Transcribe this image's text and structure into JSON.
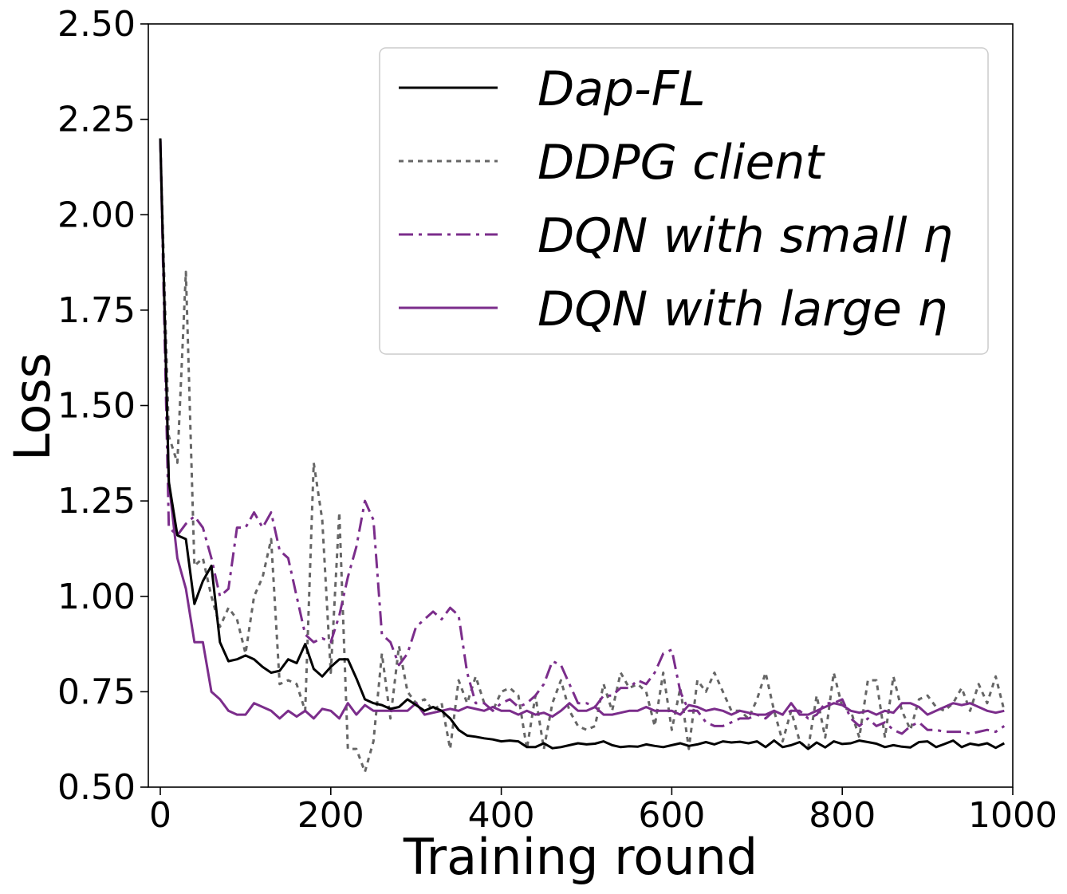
{
  "chart_data": {
    "type": "line",
    "title": "",
    "xlabel": "Training round",
    "ylabel": "Loss",
    "xlim": [
      0,
      1000
    ],
    "ylim": [
      0.5,
      2.5
    ],
    "xticks": [
      0,
      200,
      400,
      600,
      800,
      1000
    ],
    "xtick_labels": [
      "0",
      "200",
      "400",
      "600",
      "800",
      "1000"
    ],
    "yticks": [
      0.5,
      0.75,
      1.0,
      1.25,
      1.5,
      1.75,
      2.0,
      2.25,
      2.5
    ],
    "ytick_labels": [
      "0.50",
      "0.75",
      "1.00",
      "1.25",
      "1.50",
      "1.75",
      "2.00",
      "2.25",
      "2.50"
    ],
    "grid": false,
    "legend_position": "top-right",
    "x": [
      0,
      10,
      20,
      30,
      40,
      50,
      60,
      70,
      80,
      90,
      100,
      110,
      120,
      130,
      140,
      150,
      160,
      170,
      180,
      190,
      200,
      210,
      220,
      230,
      240,
      250,
      260,
      270,
      280,
      290,
      300,
      310,
      320,
      330,
      340,
      350,
      360,
      370,
      380,
      390,
      400,
      410,
      420,
      430,
      440,
      450,
      460,
      470,
      480,
      490,
      500,
      510,
      520,
      530,
      540,
      550,
      560,
      570,
      580,
      590,
      600,
      610,
      620,
      630,
      640,
      650,
      660,
      670,
      680,
      690,
      700,
      710,
      720,
      730,
      740,
      750,
      760,
      770,
      780,
      790,
      800,
      810,
      820,
      830,
      840,
      850,
      860,
      870,
      880,
      890,
      900,
      910,
      920,
      930,
      940,
      950,
      960,
      970,
      980,
      990
    ],
    "series": [
      {
        "name": "Dap-FL",
        "color": "#000000",
        "style": "solid",
        "values": [
          2.2,
          1.3,
          1.16,
          1.15,
          0.98,
          1.04,
          1.08,
          0.88,
          0.83,
          0.835,
          0.845,
          0.835,
          0.815,
          0.8,
          0.805,
          0.835,
          0.825,
          0.875,
          0.81,
          0.79,
          0.815,
          0.835,
          0.835,
          0.785,
          0.73,
          0.72,
          0.715,
          0.705,
          0.71,
          0.73,
          0.715,
          0.7,
          0.71,
          0.7,
          0.68,
          0.65,
          0.635,
          0.632,
          0.628,
          0.625,
          0.62,
          0.622,
          0.62,
          0.605,
          0.605,
          0.615,
          0.602,
          0.605,
          0.61,
          0.615,
          0.612,
          0.614,
          0.62,
          0.61,
          0.605,
          0.607,
          0.606,
          0.612,
          0.608,
          0.605,
          0.61,
          0.615,
          0.608,
          0.612,
          0.618,
          0.612,
          0.62,
          0.617,
          0.619,
          0.615,
          0.62,
          0.605,
          0.622,
          0.605,
          0.61,
          0.618,
          0.6,
          0.617,
          0.604,
          0.62,
          0.613,
          0.615,
          0.622,
          0.618,
          0.614,
          0.605,
          0.61,
          0.606,
          0.604,
          0.618,
          0.62,
          0.605,
          0.613,
          0.622,
          0.605,
          0.614,
          0.61,
          0.615,
          0.603,
          0.615
        ]
      },
      {
        "name": "DDPG client",
        "color": "#666666",
        "style": "dotted",
        "values": [
          2.2,
          1.42,
          1.35,
          1.85,
          1.08,
          1.1,
          1.0,
          0.92,
          0.97,
          0.94,
          0.85,
          1.0,
          1.05,
          1.15,
          0.77,
          0.78,
          0.77,
          0.7,
          1.35,
          1.2,
          0.8,
          1.22,
          0.6,
          0.6,
          0.54,
          0.62,
          0.85,
          0.68,
          0.87,
          0.75,
          0.72,
          0.73,
          0.7,
          0.72,
          0.6,
          0.78,
          0.72,
          0.79,
          0.72,
          0.7,
          0.75,
          0.76,
          0.74,
          0.6,
          0.74,
          0.6,
          0.72,
          0.78,
          0.7,
          0.66,
          0.65,
          0.66,
          0.77,
          0.7,
          0.8,
          0.76,
          0.77,
          0.75,
          0.66,
          0.8,
          0.65,
          0.76,
          0.6,
          0.78,
          0.75,
          0.8,
          0.75,
          0.7,
          0.7,
          0.68,
          0.73,
          0.8,
          0.7,
          0.62,
          0.7,
          0.62,
          0.6,
          0.74,
          0.63,
          0.8,
          0.71,
          0.7,
          0.63,
          0.78,
          0.78,
          0.63,
          0.79,
          0.7,
          0.65,
          0.73,
          0.74,
          0.71,
          0.7,
          0.72,
          0.76,
          0.7,
          0.77,
          0.72,
          0.79,
          0.7
        ]
      },
      {
        "name": "DQN with small η",
        "color": "#7b2d8b",
        "style": "dashdot",
        "values": [
          2.2,
          1.18,
          1.16,
          1.19,
          1.21,
          1.18,
          1.1,
          1.0,
          1.02,
          1.18,
          1.18,
          1.22,
          1.18,
          1.22,
          1.12,
          1.1,
          1.0,
          0.9,
          0.88,
          0.89,
          0.88,
          0.95,
          1.05,
          1.13,
          1.25,
          1.2,
          0.9,
          0.88,
          0.82,
          0.85,
          0.92,
          0.94,
          0.96,
          0.94,
          0.97,
          0.95,
          0.8,
          0.72,
          0.72,
          0.7,
          0.72,
          0.73,
          0.71,
          0.72,
          0.74,
          0.77,
          0.83,
          0.82,
          0.77,
          0.72,
          0.72,
          0.71,
          0.74,
          0.74,
          0.76,
          0.76,
          0.78,
          0.77,
          0.8,
          0.85,
          0.86,
          0.75,
          0.7,
          0.7,
          0.67,
          0.66,
          0.66,
          0.67,
          0.68,
          0.68,
          0.69,
          0.68,
          0.7,
          0.69,
          0.7,
          0.7,
          0.68,
          0.69,
          0.72,
          0.72,
          0.73,
          0.68,
          0.66,
          0.68,
          0.66,
          0.67,
          0.65,
          0.64,
          0.66,
          0.67,
          0.65,
          0.65,
          0.645,
          0.645,
          0.645,
          0.64,
          0.645,
          0.65,
          0.645,
          0.66
        ]
      },
      {
        "name": "DQN with large η",
        "color": "#7b2d8b",
        "style": "solid",
        "values": [
          2.2,
          1.3,
          1.1,
          1.02,
          0.88,
          0.88,
          0.75,
          0.73,
          0.7,
          0.69,
          0.69,
          0.72,
          0.71,
          0.7,
          0.68,
          0.7,
          0.685,
          0.7,
          0.68,
          0.705,
          0.7,
          0.68,
          0.72,
          0.69,
          0.715,
          0.7,
          0.7,
          0.7,
          0.7,
          0.7,
          0.72,
          0.69,
          0.695,
          0.7,
          0.705,
          0.7,
          0.71,
          0.705,
          0.7,
          0.71,
          0.7,
          0.7,
          0.69,
          0.7,
          0.69,
          0.695,
          0.685,
          0.7,
          0.72,
          0.7,
          0.7,
          0.71,
          0.69,
          0.69,
          0.695,
          0.7,
          0.7,
          0.71,
          0.7,
          0.7,
          0.7,
          0.69,
          0.715,
          0.71,
          0.7,
          0.705,
          0.7,
          0.69,
          0.7,
          0.695,
          0.69,
          0.69,
          0.7,
          0.69,
          0.72,
          0.69,
          0.69,
          0.7,
          0.71,
          0.72,
          0.715,
          0.7,
          0.695,
          0.7,
          0.69,
          0.7,
          0.695,
          0.72,
          0.72,
          0.71,
          0.69,
          0.7,
          0.71,
          0.72,
          0.715,
          0.72,
          0.71,
          0.7,
          0.695,
          0.7
        ]
      }
    ]
  }
}
